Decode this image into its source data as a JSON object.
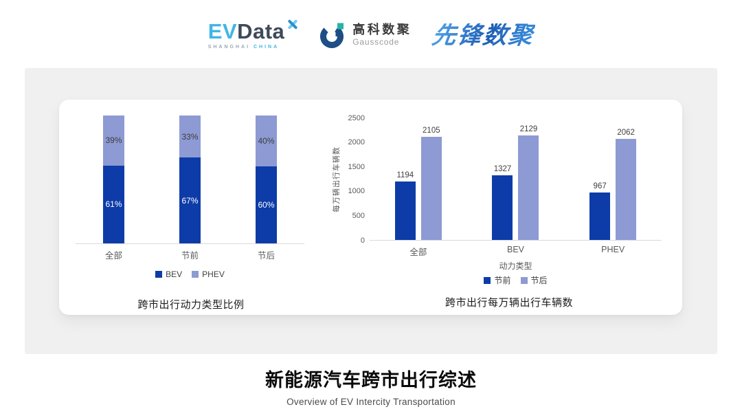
{
  "header": {
    "evdata": {
      "ev": "EV",
      "data": "Data",
      "sub_left": "SHANGHAI",
      "sub_right": "CHINA"
    },
    "gausscode": {
      "cn": "高科数聚",
      "en": "Gausscode"
    },
    "xianfeng": "先锋数聚"
  },
  "chart_data": [
    {
      "type": "bar",
      "subtype": "stacked-percent",
      "title": "跨市出行动力类型比例",
      "categories": [
        "全部",
        "节前",
        "节后"
      ],
      "series": [
        {
          "name": "BEV",
          "values": [
            61,
            67,
            60
          ],
          "color": "#0d3ca8"
        },
        {
          "name": "PHEV",
          "values": [
            39,
            33,
            40
          ],
          "color": "#8d9ad3"
        }
      ],
      "value_suffix": "%",
      "ylim": [
        0,
        100
      ],
      "grid": false,
      "legend_position": "bottom"
    },
    {
      "type": "bar",
      "subtype": "grouped",
      "title": "跨市出行每万辆出行车辆数",
      "categories": [
        "全部",
        "BEV",
        "PHEV"
      ],
      "series": [
        {
          "name": "节前",
          "values": [
            1194,
            1327,
            967
          ],
          "color": "#0d3ca8"
        },
        {
          "name": "节后",
          "values": [
            2105,
            2129,
            2062
          ],
          "color": "#8d9ad3"
        }
      ],
      "xlabel": "动力类型",
      "ylabel": "每万辆出行车辆数",
      "ylim": [
        0,
        2500
      ],
      "yticks": [
        0,
        500,
        1000,
        1500,
        2000,
        2500
      ],
      "grid": false,
      "legend_position": "bottom"
    }
  ],
  "footer": {
    "title": "新能源汽车跨市出行综述",
    "subtitle": "Overview of EV Intercity Transportation"
  },
  "colors": {
    "series_dark": "#0d3ca8",
    "series_light": "#8d9ad3",
    "axis_text": "#595959",
    "baseline": "#d9d9d9",
    "panel_bg": "#f0f0f1",
    "card_bg": "#ffffff"
  }
}
